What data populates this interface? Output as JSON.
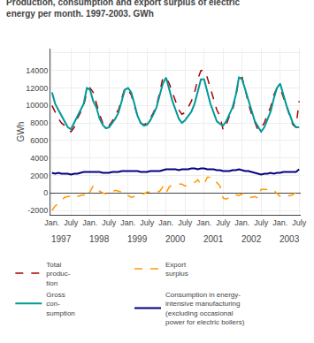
{
  "chart_data": {
    "type": "line",
    "title": "Production, consumption and export surplus of electric\nenergy per month. 1997-2003. GWh",
    "ylabel": "GWh",
    "categories": [
      "Jan.",
      null,
      null,
      null,
      null,
      null,
      "July",
      null,
      null,
      null,
      null,
      null,
      "Jan.",
      null,
      null,
      null,
      null,
      null,
      "July",
      null,
      null,
      null,
      null,
      null,
      "Jan.",
      null,
      null,
      null,
      null,
      null,
      "July",
      null,
      null,
      null,
      null,
      null,
      "Jan.",
      null,
      null,
      null,
      null,
      null,
      "July",
      null,
      null,
      null,
      null,
      null,
      "Jan.",
      null,
      null,
      null,
      null,
      null,
      "July",
      null,
      null,
      null,
      null,
      null,
      "Jan.",
      null,
      null,
      null,
      null,
      null,
      "July",
      null,
      null,
      null,
      null,
      null,
      "Jan.",
      null,
      null,
      null,
      null,
      null,
      "July"
    ],
    "annotations": [
      {
        "text": "1997",
        "x": 3
      },
      {
        "text": "1998",
        "x": 15
      },
      {
        "text": "1999",
        "x": 27
      },
      {
        "text": "2000",
        "x": 39
      },
      {
        "text": "2001",
        "x": 51
      },
      {
        "text": "2002",
        "x": 63
      },
      {
        "text": "2003",
        "x": 75
      }
    ],
    "ylim": [
      -2500,
      16500
    ],
    "yticks": [
      -2000,
      0,
      2000,
      4000,
      6000,
      8000,
      10000,
      12000,
      14000,
      {
        "value": 16000,
        "label": null
      }
    ],
    "grid": true,
    "legend": "bottom",
    "series": [
      {
        "name": "Total\nproduc-\ntion",
        "color": "#aa0000",
        "line_style": "dashed",
        "values": [
          10000,
          9200,
          8500,
          8000,
          7700,
          7200,
          7000,
          7500,
          8500,
          9200,
          10000,
          11500,
          12000,
          11500,
          10200,
          9000,
          8000,
          7500,
          7700,
          8200,
          9000,
          9500,
          10800,
          12000,
          11800,
          11200,
          10000,
          8800,
          8000,
          7800,
          8000,
          8500,
          9200,
          10000,
          11500,
          13200,
          13200,
          12500,
          11500,
          10500,
          9500,
          9000,
          9200,
          9800,
          10500,
          11500,
          13000,
          14000,
          14000,
          13200,
          12000,
          10800,
          9500,
          8800,
          7200,
          7800,
          8800,
          9500,
          11000,
          13000,
          13200,
          11800,
          10200,
          9000,
          8000,
          7200,
          7500,
          8000,
          9000,
          9800,
          11200,
          12000,
          12000,
          11000,
          9800,
          8800,
          7800,
          7500,
          10500
        ]
      },
      {
        "name": "Export\nsurplus",
        "color": "#ff9900",
        "line_style": "dashed",
        "values": [
          -2000,
          -1500,
          -1200,
          -800,
          -500,
          -400,
          -400,
          -600,
          -400,
          -300,
          -200,
          -500,
          100,
          800,
          300,
          200,
          0,
          -100,
          100,
          100,
          300,
          200,
          100,
          100,
          -300,
          -500,
          -400,
          -200,
          -100,
          -100,
          100,
          100,
          100,
          100,
          200,
          700,
          0,
          700,
          900,
          1000,
          1000,
          1000,
          800,
          900,
          1100,
          1200,
          1500,
          1000,
          1000,
          1800,
          1800,
          1500,
          1200,
          800,
          -600,
          -700,
          -500,
          -400,
          -200,
          -300,
          -100,
          -200,
          -500,
          -500,
          -400,
          -600,
          400,
          400,
          400,
          400,
          300,
          -100,
          -400,
          -500,
          -400,
          -300,
          -200,
          100,
          200
        ]
      },
      {
        "name": "Gross\ncon-\nsumption",
        "color": "#009999",
        "line_style": "solid",
        "values": [
          11500,
          10200,
          9500,
          8800,
          8200,
          7500,
          7300,
          8000,
          8800,
          9500,
          10200,
          12000,
          11800,
          10500,
          9800,
          8500,
          7800,
          7400,
          7500,
          8000,
          8500,
          9200,
          10500,
          11800,
          12000,
          11500,
          10200,
          8800,
          8000,
          7700,
          7800,
          8300,
          9000,
          9800,
          11200,
          12500,
          13200,
          11800,
          10500,
          9500,
          8500,
          8000,
          8300,
          8800,
          9300,
          10200,
          11500,
          13000,
          13000,
          11500,
          10200,
          9200,
          8200,
          7900,
          7700,
          8200,
          9000,
          9800,
          11200,
          13200,
          13000,
          11800,
          10500,
          9200,
          8200,
          7600,
          7000,
          7500,
          8500,
          9300,
          10800,
          12000,
          12500,
          11200,
          10000,
          9000,
          8000,
          7500,
          7500
        ]
      },
      {
        "name": "Consumption in energy-\nintensive manufacturing\n(excluding occasional\npower for electric boilers)",
        "color": "#000080",
        "line_style": "solid",
        "values": [
          2300,
          2200,
          2300,
          2200,
          2200,
          2200,
          2100,
          2200,
          2200,
          2300,
          2400,
          2400,
          2400,
          2400,
          2400,
          2400,
          2300,
          2300,
          2300,
          2400,
          2400,
          2400,
          2500,
          2500,
          2500,
          2500,
          2500,
          2500,
          2400,
          2400,
          2400,
          2500,
          2500,
          2500,
          2500,
          2600,
          2700,
          2700,
          2700,
          2700,
          2600,
          2700,
          2700,
          2700,
          2800,
          2800,
          2700,
          2800,
          2800,
          2700,
          2700,
          2700,
          2600,
          2600,
          2500,
          2500,
          2500,
          2600,
          2600,
          2700,
          2600,
          2500,
          2500,
          2400,
          2300,
          2200,
          2100,
          2200,
          2200,
          2300,
          2200,
          2300,
          2300,
          2400,
          2400,
          2400,
          2400,
          2400,
          2700
        ]
      }
    ]
  }
}
